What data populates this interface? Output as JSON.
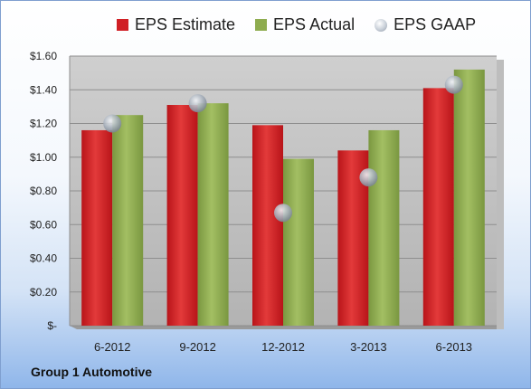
{
  "chart_data": {
    "type": "bar",
    "categories": [
      "6-2012",
      "9-2012",
      "12-2012",
      "3-2013",
      "6-2013"
    ],
    "series": [
      {
        "name": "EPS Estimate",
        "values": [
          1.16,
          1.31,
          1.19,
          1.04,
          1.41
        ],
        "color": "#d01f25"
      },
      {
        "name": "EPS Actual",
        "values": [
          1.25,
          1.32,
          0.99,
          1.16,
          1.52
        ],
        "color": "#8eac4f"
      },
      {
        "name": "EPS GAAP",
        "values": [
          1.2,
          1.32,
          0.67,
          0.88,
          1.43
        ],
        "color": "#aab3be",
        "marker": "circle"
      }
    ],
    "yticks": [
      "$-",
      "$0.20",
      "$0.40",
      "$0.60",
      "$0.80",
      "$1.00",
      "$1.20",
      "$1.40",
      "$1.60"
    ],
    "ylim": [
      0,
      1.6
    ],
    "legend_position": "top",
    "grid": true
  },
  "caption": "Group 1 Automotive"
}
